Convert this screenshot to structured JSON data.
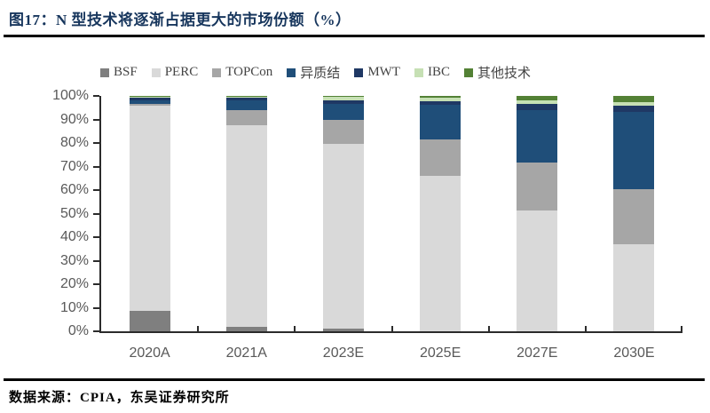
{
  "title": "图17：N 型技术将逐渐占据更大的市场份额（%）",
  "source": "数据来源：CPIA，东吴证券研究所",
  "colors": {
    "title_text": "#17365D",
    "axis_text": "#595959",
    "axis_line": "#2b2b2b",
    "divider": "#000000",
    "background": "#ffffff"
  },
  "chart_data": {
    "type": "bar",
    "stacked": true,
    "unit": "%",
    "title": "N 型技术将逐渐占据更大的市场份额（%）",
    "xlabel": "",
    "ylabel": "",
    "ylim": [
      0,
      100
    ],
    "ytick_step": 10,
    "ytick_labels": [
      "0%",
      "10%",
      "20%",
      "30%",
      "40%",
      "50%",
      "60%",
      "70%",
      "80%",
      "90%",
      "100%"
    ],
    "grid": false,
    "legend_position": "top",
    "categories": [
      "2020A",
      "2021A",
      "2023E",
      "2025E",
      "2027E",
      "2030E"
    ],
    "series": [
      {
        "name": "BSF",
        "color": "#7F7F7F",
        "values": [
          8.8,
          1.8,
          1.0,
          0,
          0,
          0
        ]
      },
      {
        "name": "PERC",
        "color": "#D9D9D9",
        "values": [
          87.0,
          85.7,
          78.8,
          66.0,
          51.3,
          36.8
        ]
      },
      {
        "name": "TOPCon",
        "color": "#A6A6A6",
        "values": [
          1.0,
          6.3,
          10.1,
          15.7,
          20.3,
          23.4
        ]
      },
      {
        "name": "异质结",
        "color": "#1F4E79",
        "values": [
          1.2,
          4.3,
          6.9,
          14.4,
          22.4,
          33.2
        ]
      },
      {
        "name": "MWT",
        "color": "#1F3864",
        "values": [
          1.2,
          1.0,
          1.5,
          1.5,
          2.8,
          2.5
        ]
      },
      {
        "name": "IBC",
        "color": "#C6E0B4",
        "values": [
          0.5,
          0.7,
          1.4,
          1.6,
          1.3,
          1.3
        ]
      },
      {
        "name": "其他技术",
        "color": "#538135",
        "values": [
          0.3,
          0.2,
          0.3,
          0.8,
          1.9,
          2.8
        ]
      }
    ]
  }
}
